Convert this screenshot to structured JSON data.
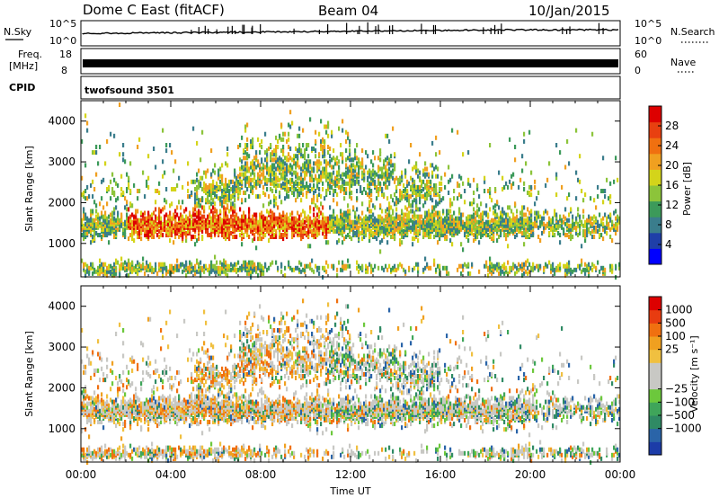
{
  "header": {
    "station": "Dome C East (fitACF)",
    "beam": "Beam 04",
    "date": "10/Jan/2015"
  },
  "sky_panel": {
    "left_label": "N.Sky",
    "right_label": "N.Search",
    "tick_top": "10^5",
    "tick_bottom": "10^0"
  },
  "freq_panel": {
    "left_label_line1": "Freq.",
    "left_label_line2": "[MHz]",
    "left_tick_top": "18",
    "left_tick_bottom": "8",
    "right_label": "Nave",
    "right_tick_top": "60",
    "right_tick_bottom": "0"
  },
  "cpid_panel": {
    "label": "CPID",
    "program": "twofsound 3501"
  },
  "chart_data": [
    {
      "type": "heatmap",
      "panel": "power",
      "ylabel": "Slant Range [km]",
      "xlabel": "",
      "y_ticks": [
        "1000",
        "2000",
        "3000",
        "4000"
      ],
      "y_tick_values": [
        1000,
        2000,
        3000,
        4000
      ],
      "ylim": [
        180,
        4500
      ],
      "xlim_hours": [
        0,
        24
      ],
      "x_ticks": [
        "00:00",
        "04:00",
        "08:00",
        "12:00",
        "16:00",
        "20:00",
        "00:00"
      ],
      "colorbar": {
        "label": "Power [dB]",
        "ticks": [
          "4",
          "8",
          "12",
          "16",
          "20",
          "24",
          "28"
        ],
        "tick_values": [
          4,
          8,
          12,
          16,
          20,
          24,
          28
        ],
        "range": [
          0,
          32
        ],
        "colors": [
          "#0000ff",
          "#1f3fa8",
          "#3a7d8c",
          "#3c9a5a",
          "#8cc43a",
          "#d4d41a",
          "#f0a020",
          "#f07010",
          "#e84010",
          "#dd0000"
        ]
      }
    },
    {
      "type": "heatmap",
      "panel": "velocity",
      "ylabel": "Slant Range [km]",
      "xlabel": "Time UT",
      "y_ticks": [
        "1000",
        "2000",
        "3000",
        "4000"
      ],
      "y_tick_values": [
        1000,
        2000,
        3000,
        4000
      ],
      "ylim": [
        180,
        4500
      ],
      "xlim_hours": [
        0,
        24
      ],
      "x_ticks": [
        "00:00",
        "04:00",
        "08:00",
        "12:00",
        "16:00",
        "20:00",
        "00:00"
      ],
      "colorbar": {
        "label": "Velocity [m s⁻¹]",
        "ticks": [
          "1000",
          "500",
          "100",
          "25",
          "−25",
          "−100",
          "−500",
          "−1000"
        ],
        "colors": [
          "#1c3ca8",
          "#2a64a8",
          "#2f8a64",
          "#3fa55a",
          "#6cc83c",
          "#c8c8c4",
          "#c8c8c4",
          "#f0c040",
          "#f0a020",
          "#f07010",
          "#e83c10",
          "#dd0000"
        ]
      }
    }
  ]
}
